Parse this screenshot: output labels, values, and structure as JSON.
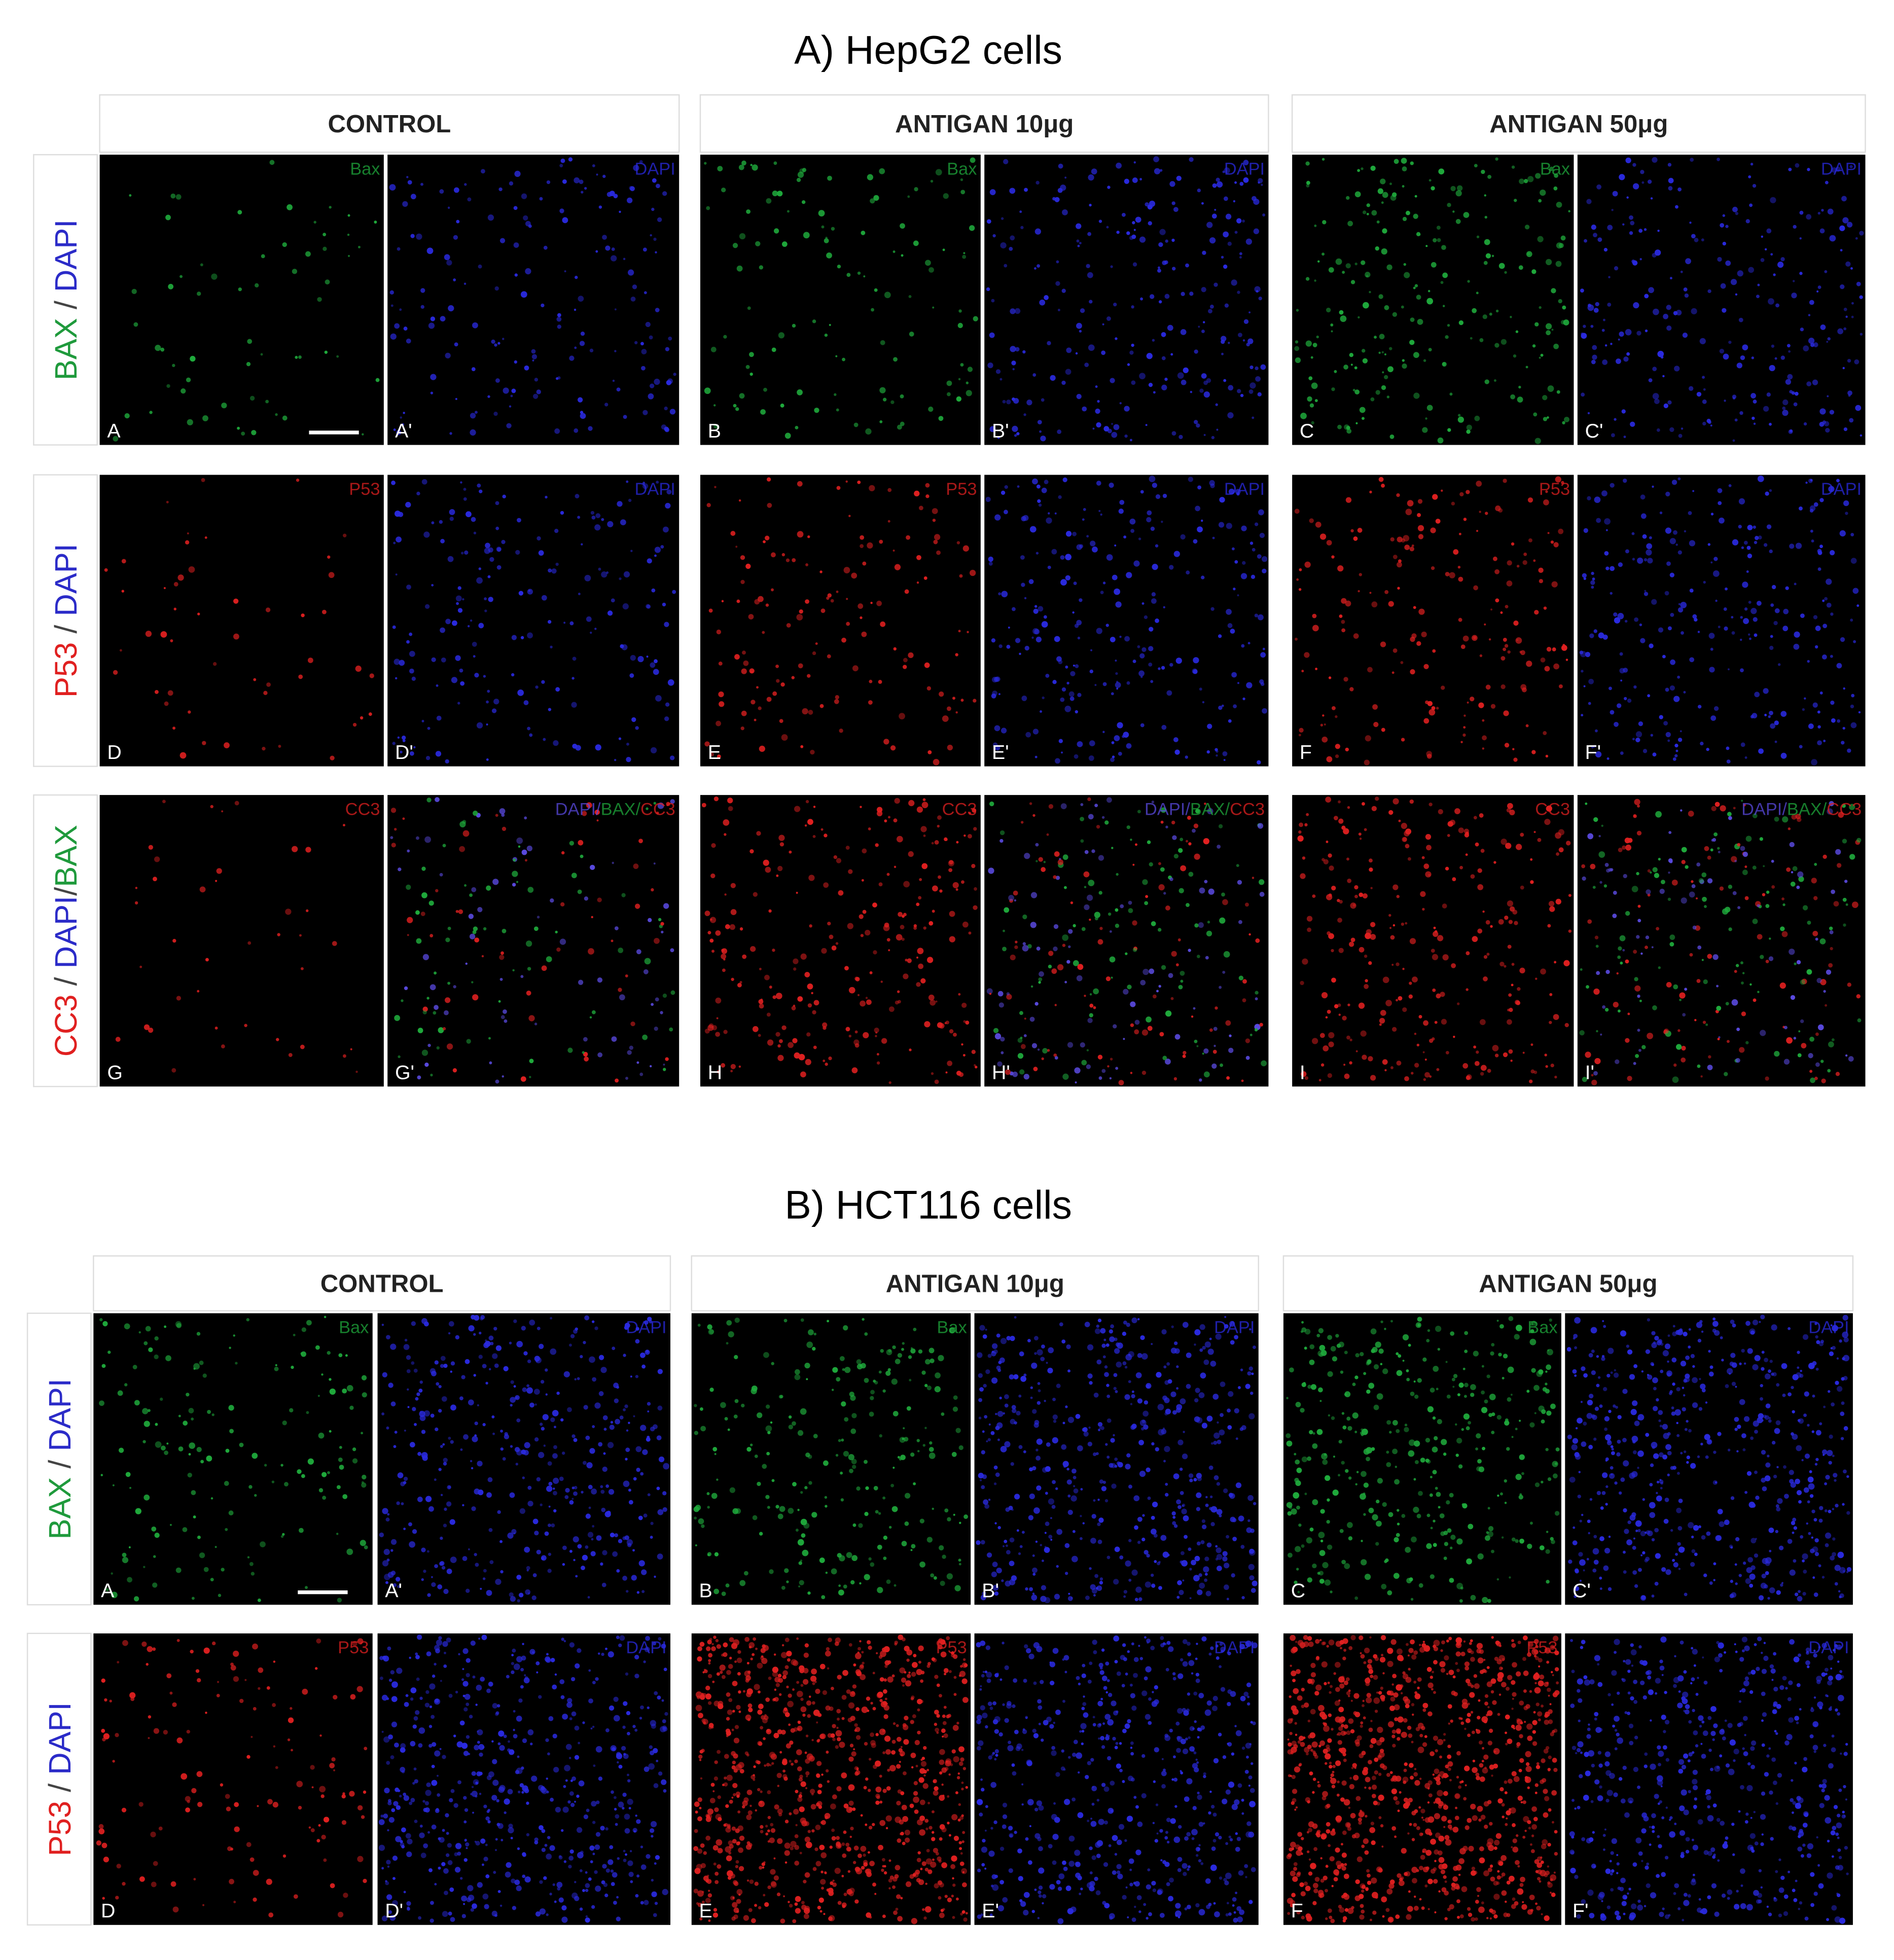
{
  "figures": [
    {
      "title": "A)  HepG2 cells",
      "columns": [
        "CONTROL",
        "ANTIGAN 10μg",
        "ANTIGAN 50μg"
      ],
      "rows": [
        {
          "label": [
            {
              "text": "BAX",
              "color": "#1f9a3c"
            },
            {
              "text": " / ",
              "color": "#444444"
            },
            {
              "text": "DAPI",
              "color": "#2b2bc8"
            }
          ],
          "panels": [
            {
              "channel": [
                {
                  "text": "Bax",
                  "color": "#1faa3c"
                }
              ],
              "letter": "A"
            },
            {
              "channel": [
                {
                  "text": "DAPI",
                  "color": "#2a2ae0"
                }
              ],
              "letter": "A'"
            },
            {
              "channel": [
                {
                  "text": "Bax",
                  "color": "#1faa3c"
                }
              ],
              "letter": "B"
            },
            {
              "channel": [
                {
                  "text": "DAPI",
                  "color": "#2a2ae0"
                }
              ],
              "letter": "B'"
            },
            {
              "channel": [
                {
                  "text": "Bax",
                  "color": "#1faa3c"
                }
              ],
              "letter": "C"
            },
            {
              "channel": [
                {
                  "text": "DAPI",
                  "color": "#2a2ae0"
                }
              ],
              "letter": "C'"
            }
          ]
        },
        {
          "label": [
            {
              "text": "P53",
              "color": "#e02020"
            },
            {
              "text": " / ",
              "color": "#444444"
            },
            {
              "text": "DAPI",
              "color": "#2b2bc8"
            }
          ],
          "panels": [
            {
              "channel": [
                {
                  "text": "P53",
                  "color": "#e02020"
                }
              ],
              "letter": "D"
            },
            {
              "channel": [
                {
                  "text": "DAPI",
                  "color": "#2a2ae0"
                }
              ],
              "letter": "D'"
            },
            {
              "channel": [
                {
                  "text": "P53",
                  "color": "#e02020"
                }
              ],
              "letter": "E"
            },
            {
              "channel": [
                {
                  "text": "DAPI",
                  "color": "#2a2ae0"
                }
              ],
              "letter": "E'"
            },
            {
              "channel": [
                {
                  "text": "P53",
                  "color": "#e02020"
                }
              ],
              "letter": "F"
            },
            {
              "channel": [
                {
                  "text": "DAPI",
                  "color": "#2a2ae0"
                }
              ],
              "letter": "F'"
            }
          ]
        },
        {
          "label": [
            {
              "text": "CC3",
              "color": "#e02020"
            },
            {
              "text": " / ",
              "color": "#444444"
            },
            {
              "text": "DAPI",
              "color": "#2b2bc8"
            },
            {
              "text": "/",
              "color": "#444444"
            },
            {
              "text": "BAX",
              "color": "#1f9a3c"
            }
          ],
          "panels": [
            {
              "channel": [
                {
                  "text": "CC3",
                  "color": "#e02020"
                }
              ],
              "letter": "G"
            },
            {
              "channel": [
                {
                  "text": "DAPI",
                  "color": "#5a4ae0"
                },
                {
                  "text": "/",
                  "color": "#5a4ae0"
                },
                {
                  "text": "BAX",
                  "color": "#1faa3c"
                },
                {
                  "text": "/",
                  "color": "#1faa3c"
                },
                {
                  "text": "CC3",
                  "color": "#e02020"
                }
              ],
              "letter": "G'"
            },
            {
              "channel": [
                {
                  "text": "CC3",
                  "color": "#e02020"
                }
              ],
              "letter": "H"
            },
            {
              "channel": [
                {
                  "text": "DAPI",
                  "color": "#5a4ae0"
                },
                {
                  "text": "/",
                  "color": "#5a4ae0"
                },
                {
                  "text": "BAX",
                  "color": "#1faa3c"
                },
                {
                  "text": "/",
                  "color": "#1faa3c"
                },
                {
                  "text": "CC3",
                  "color": "#e02020"
                }
              ],
              "letter": "H'"
            },
            {
              "channel": [
                {
                  "text": "CC3",
                  "color": "#e02020"
                }
              ],
              "letter": "I"
            },
            {
              "channel": [
                {
                  "text": "DAPI",
                  "color": "#5a4ae0"
                },
                {
                  "text": "/",
                  "color": "#5a4ae0"
                },
                {
                  "text": "BAX",
                  "color": "#1faa3c"
                },
                {
                  "text": "/",
                  "color": "#1faa3c"
                },
                {
                  "text": "CC3",
                  "color": "#e02020"
                }
              ],
              "letter": "I'"
            }
          ]
        }
      ]
    },
    {
      "title": "B)  HCT116 cells",
      "columns": [
        "CONTROL",
        "ANTIGAN 10μg",
        "ANTIGAN 50μg"
      ],
      "rows": [
        {
          "label": [
            {
              "text": "BAX",
              "color": "#1f9a3c"
            },
            {
              "text": " / ",
              "color": "#444444"
            },
            {
              "text": "DAPI",
              "color": "#2b2bc8"
            }
          ],
          "panels": [
            {
              "channel": [
                {
                  "text": "Bax",
                  "color": "#1faa3c"
                }
              ],
              "letter": "A"
            },
            {
              "channel": [
                {
                  "text": "DAPI",
                  "color": "#2a2ae0"
                }
              ],
              "letter": "A'"
            },
            {
              "channel": [
                {
                  "text": "Bax",
                  "color": "#1faa3c"
                }
              ],
              "letter": "B"
            },
            {
              "channel": [
                {
                  "text": "DAPI",
                  "color": "#2a2ae0"
                }
              ],
              "letter": "B'"
            },
            {
              "channel": [
                {
                  "text": "Bax",
                  "color": "#1faa3c"
                }
              ],
              "letter": "C"
            },
            {
              "channel": [
                {
                  "text": "DAPI",
                  "color": "#2a2ae0"
                }
              ],
              "letter": "C'"
            }
          ]
        },
        {
          "label": [
            {
              "text": "P53",
              "color": "#e02020"
            },
            {
              "text": " / ",
              "color": "#444444"
            },
            {
              "text": "DAPI",
              "color": "#2b2bc8"
            }
          ],
          "panels": [
            {
              "channel": [
                {
                  "text": "P53",
                  "color": "#e02020"
                }
              ],
              "letter": "D"
            },
            {
              "channel": [
                {
                  "text": "DAPI",
                  "color": "#2a2ae0"
                }
              ],
              "letter": "D'"
            },
            {
              "channel": [
                {
                  "text": "P53",
                  "color": "#e02020"
                }
              ],
              "letter": "E"
            },
            {
              "channel": [
                {
                  "text": "DAPI",
                  "color": "#2a2ae0"
                }
              ],
              "letter": "E'"
            },
            {
              "channel": [
                {
                  "text": "P53",
                  "color": "#e02020"
                }
              ],
              "letter": "F"
            },
            {
              "channel": [
                {
                  "text": "DAPI",
                  "color": "#2a2ae0"
                }
              ],
              "letter": "F'"
            }
          ]
        }
      ]
    }
  ]
}
